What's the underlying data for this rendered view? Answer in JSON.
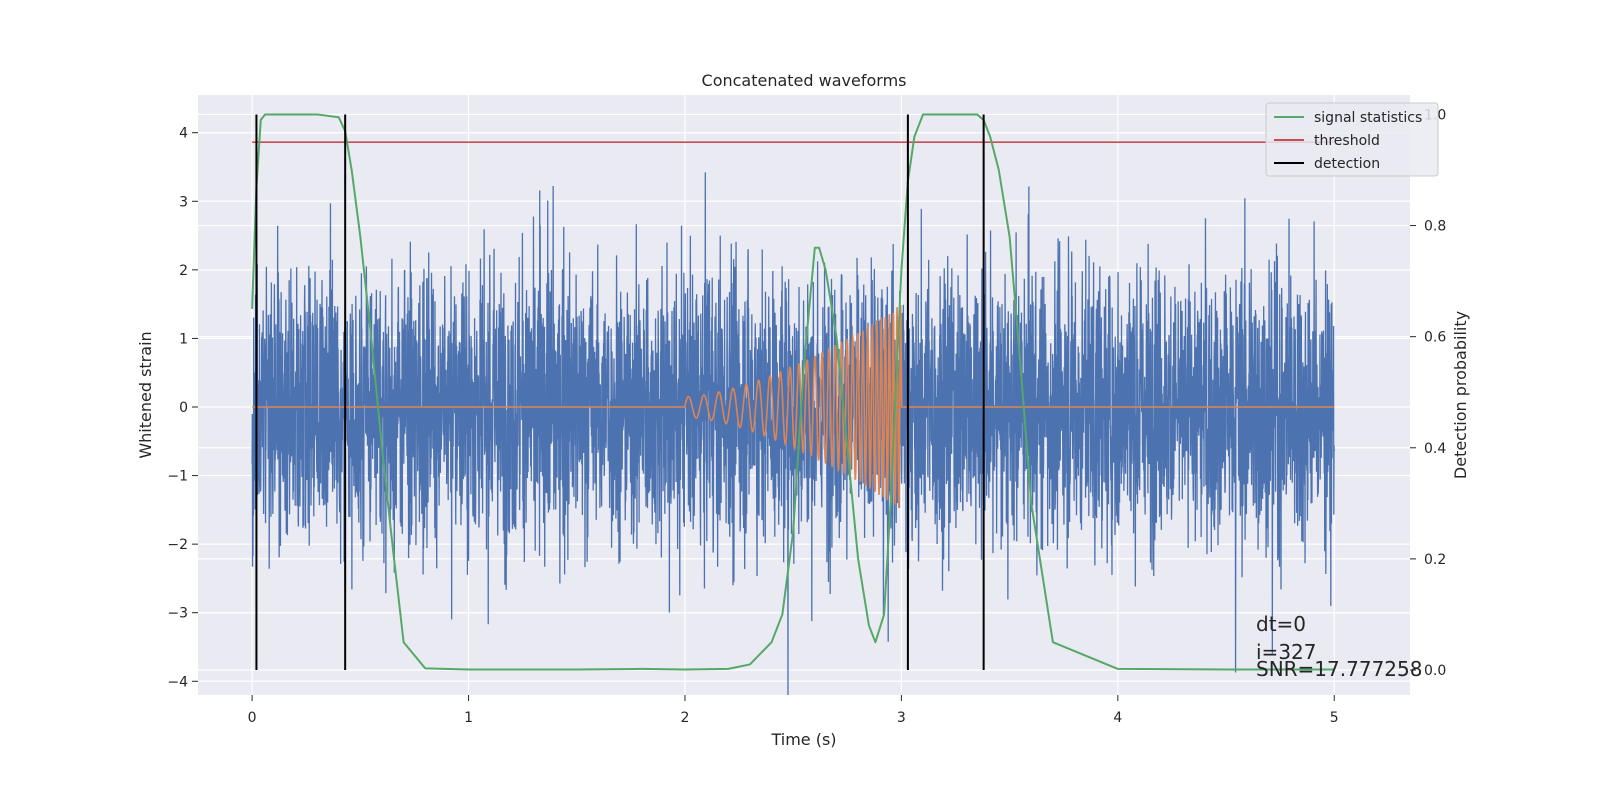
{
  "chart_data": {
    "type": "line",
    "title": "Concatenated waveforms",
    "xlabel": "Time (s)",
    "ylabel": "Whitened strain",
    "ylabel_right": "Detection probability",
    "xlim": [
      -0.25,
      5.35
    ],
    "ylim": [
      -4.2,
      4.55
    ],
    "ylim_right": [
      -0.045,
      1.035
    ],
    "x_ticks": [
      0,
      1,
      2,
      3,
      4,
      5
    ],
    "y_ticks": [
      -4,
      -3,
      -2,
      -1,
      0,
      1,
      2,
      3,
      4
    ],
    "y_ticks_right": [
      0.0,
      0.2,
      0.4,
      0.6,
      0.8,
      1.0
    ],
    "grid": true,
    "legend_position": "top-right",
    "series": [
      {
        "name": "",
        "axis": "left",
        "kind": "noise",
        "color": "#4c72b0",
        "x_range": [
          0,
          5
        ],
        "typical_amplitude": 1.0,
        "max_abs": 4.2
      },
      {
        "name": "",
        "axis": "left",
        "kind": "chirp",
        "color": "#dd8452",
        "x_range": [
          0,
          5
        ],
        "chirp_start": 2.0,
        "chirp_end": 3.0,
        "peak_amplitude": 1.5
      },
      {
        "name": "signal statistics",
        "axis": "right",
        "color": "#55a868",
        "x": [
          0.0,
          0.02,
          0.04,
          0.06,
          0.1,
          0.2,
          0.3,
          0.4,
          0.43,
          0.46,
          0.5,
          0.55,
          0.6,
          0.65,
          0.7,
          0.8,
          1.0,
          1.5,
          1.8,
          2.0,
          2.2,
          2.3,
          2.35,
          2.4,
          2.45,
          2.5,
          2.55,
          2.6,
          2.62,
          2.65,
          2.7,
          2.75,
          2.8,
          2.85,
          2.88,
          2.92,
          2.95,
          3.0,
          3.03,
          3.06,
          3.1,
          3.2,
          3.35,
          3.38,
          3.41,
          3.45,
          3.5,
          3.55,
          3.6,
          3.7,
          4.0,
          4.5,
          5.0
        ],
        "values": [
          0.65,
          0.87,
          0.99,
          1.0,
          1.0,
          1.0,
          1.0,
          0.995,
          0.97,
          0.9,
          0.78,
          0.6,
          0.4,
          0.22,
          0.05,
          0.003,
          0.001,
          0.001,
          0.002,
          0.001,
          0.002,
          0.01,
          0.03,
          0.05,
          0.1,
          0.25,
          0.55,
          0.76,
          0.76,
          0.72,
          0.6,
          0.4,
          0.2,
          0.08,
          0.05,
          0.1,
          0.3,
          0.72,
          0.88,
          0.96,
          1.0,
          1.0,
          1.0,
          0.99,
          0.96,
          0.9,
          0.78,
          0.55,
          0.3,
          0.05,
          0.002,
          0.001,
          0.001
        ]
      },
      {
        "name": "threshold",
        "axis": "right",
        "color": "#c44e52",
        "x": [
          0,
          5
        ],
        "values": [
          0.95,
          0.95
        ]
      },
      {
        "name": "detection",
        "axis": "right",
        "color": "#000000",
        "vertical_lines": [
          0.02,
          0.43,
          3.03,
          3.38
        ],
        "y_range": [
          0,
          1
        ]
      }
    ],
    "annotations": [
      "dt=0",
      "i=327",
      "SNR=17.777258"
    ]
  }
}
